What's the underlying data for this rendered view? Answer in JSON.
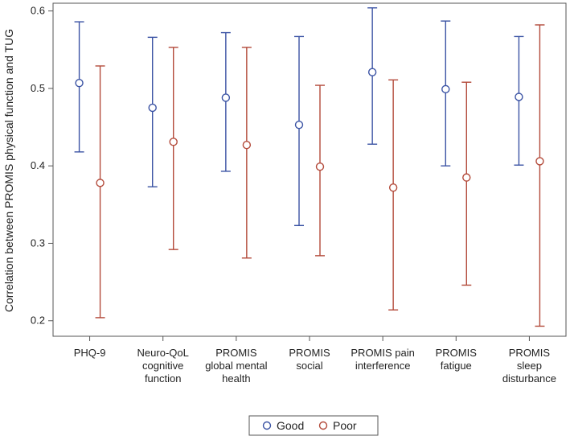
{
  "chart_data": {
    "type": "scatter",
    "ylabel": "Correlation between PROMIS physical function and TUG",
    "xlabel": "",
    "ylim": [
      0.18,
      0.61
    ],
    "yticks": [
      "0.2",
      "0.3",
      "0.4",
      "0.5",
      "0.6"
    ],
    "categories": [
      [
        "PHQ-9"
      ],
      [
        "Neuro-QoL",
        "cognitive",
        "function"
      ],
      [
        "PROMIS",
        "global mental",
        "health"
      ],
      [
        "PROMIS",
        "social"
      ],
      [
        "PROMIS pain",
        "interference"
      ],
      [
        "PROMIS",
        "fatigue"
      ],
      [
        "PROMIS",
        "sleep",
        "disturbance"
      ]
    ],
    "series": [
      {
        "name": "Good",
        "color": "#3B53A4",
        "values": [
          0.507,
          0.475,
          0.488,
          0.453,
          0.521,
          0.499,
          0.489
        ],
        "lower": [
          0.418,
          0.373,
          0.393,
          0.323,
          0.428,
          0.4,
          0.401
        ],
        "upper": [
          0.586,
          0.566,
          0.572,
          0.567,
          0.604,
          0.587,
          0.567
        ]
      },
      {
        "name": "Poor",
        "color": "#B34A3A",
        "values": [
          0.378,
          0.431,
          0.427,
          0.399,
          0.372,
          0.385,
          0.406
        ],
        "lower": [
          0.204,
          0.292,
          0.281,
          0.284,
          0.214,
          0.246,
          0.193
        ],
        "upper": [
          0.529,
          0.553,
          0.553,
          0.504,
          0.511,
          0.508,
          0.582
        ]
      }
    ],
    "legend": "bottom-center",
    "grid": false
  }
}
